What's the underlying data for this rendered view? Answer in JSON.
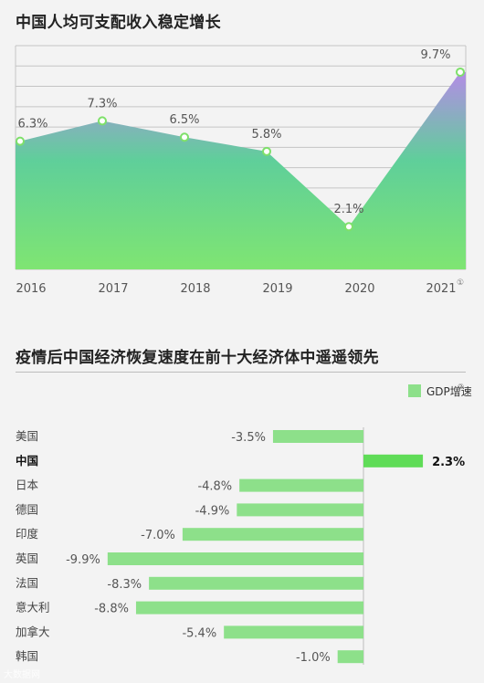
{
  "chart_data": [
    {
      "type": "area",
      "title": "中国人均可支配收入稳定增长",
      "categories": [
        "2016",
        "2017",
        "2018",
        "2019",
        "2020",
        "2021"
      ],
      "values": [
        6.3,
        7.3,
        6.5,
        5.8,
        2.1,
        9.7
      ],
      "value_labels": [
        "6.3%",
        "7.3%",
        "6.5%",
        "5.8%",
        "2.1%",
        "9.7%"
      ],
      "footnote_marker": "①",
      "ylim": [
        0,
        11
      ],
      "grid": true,
      "colors": {
        "bottom": "#7fe572",
        "mid": "#5fcf9a",
        "top": "#b48ce6",
        "point": "#7ee06a"
      }
    },
    {
      "type": "bar",
      "orientation": "horizontal",
      "title": "疫情后中国经济恢复速度在前十大经济体中遥遥领先",
      "legend": {
        "label": "GDP增速",
        "marker": "②",
        "position": "top-right"
      },
      "series": [
        {
          "name": "GDP增速",
          "color": "#8de08a"
        }
      ],
      "categories": [
        "美国",
        "中国",
        "日本",
        "德国",
        "印度",
        "英国",
        "法国",
        "意大利",
        "加拿大",
        "韩国"
      ],
      "values": [
        -3.5,
        2.3,
        -4.8,
        -4.9,
        -7.0,
        -9.9,
        -8.3,
        -8.8,
        -5.4,
        -1.0
      ],
      "value_labels": [
        "-3.5%",
        "2.3%",
        "-4.8%",
        "-4.9%",
        "-7.0%",
        "-9.9%",
        "-8.3%",
        "-8.8%",
        "-5.4%",
        "-1.0%"
      ],
      "highlight": "中国",
      "highlight_color": "#5fdc57"
    }
  ],
  "watermark": "大数据网"
}
